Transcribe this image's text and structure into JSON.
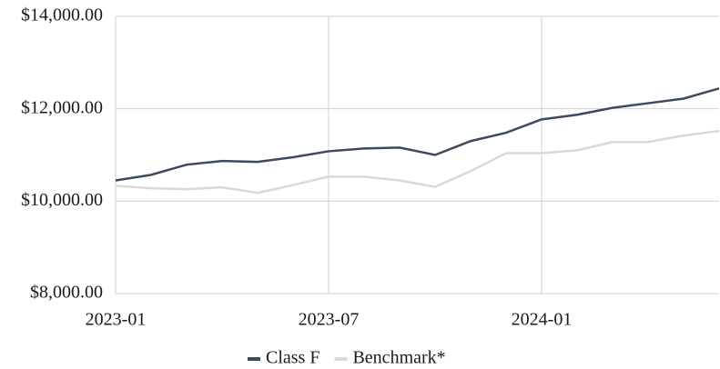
{
  "chart_data": {
    "type": "line",
    "categories": [
      "2023-01",
      null,
      null,
      null,
      null,
      null,
      "2023-07",
      null,
      null,
      null,
      null,
      null,
      "2024-01",
      null,
      null,
      null,
      null,
      null
    ],
    "series": [
      {
        "name": "Class F",
        "color": "#3d4a5e",
        "values": [
          10450,
          10570,
          10790,
          10870,
          10850,
          10950,
          11080,
          11140,
          11160,
          11000,
          11300,
          11480,
          11770,
          11870,
          12020,
          12120,
          12220,
          12440
        ]
      },
      {
        "name": "Benchmark*",
        "color": "#d9d9d9",
        "values": [
          10330,
          10280,
          10260,
          10300,
          10180,
          10350,
          10530,
          10530,
          10450,
          10310,
          10650,
          11040,
          11040,
          11100,
          11280,
          11280,
          11420,
          11520
        ]
      }
    ],
    "ylim": [
      8000,
      14000
    ],
    "yticks": [
      {
        "value": 8000,
        "label": "$8,000.00"
      },
      {
        "value": 10000,
        "label": "$10,000.00"
      },
      {
        "value": 12000,
        "label": "$12,000.00"
      },
      {
        "value": 14000,
        "label": "$14,000.00"
      }
    ],
    "grid": true,
    "legend": "bottom"
  }
}
